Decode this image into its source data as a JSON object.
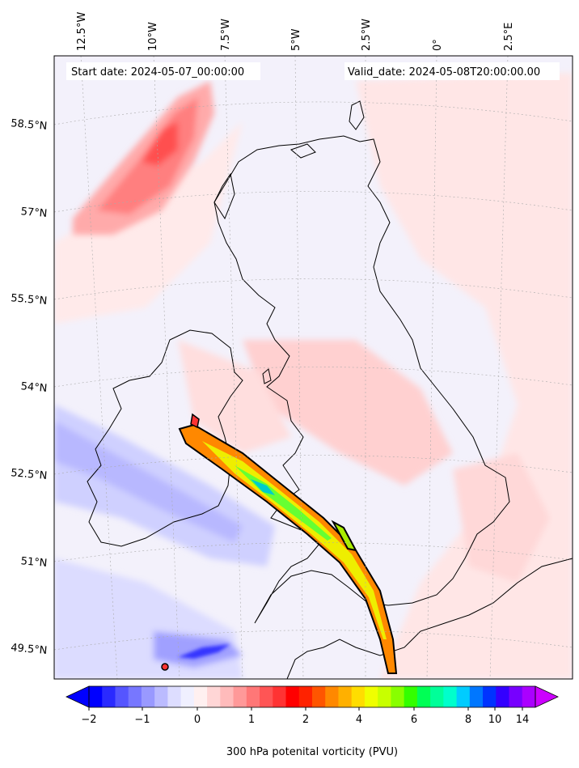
{
  "header": {
    "start_date": "Start date: 2024-05-07_00:00:00",
    "valid_date": "Valid_date: 2024-05-08T20:00:00.00"
  },
  "axes": {
    "lon_labels": [
      "12.5°W",
      "10°W",
      "7.5°W",
      "5°W",
      "2.5°W",
      "0°",
      "2.5°E"
    ],
    "lat_labels": [
      "58.5°N",
      "57°N",
      "55.5°N",
      "54°N",
      "52.5°N",
      "51°N",
      "49.5°N"
    ],
    "gridlines": true
  },
  "colorbar": {
    "label": "300 hPa potenital vorticity (PVU)",
    "tick_labels": [
      "−2",
      "−1",
      "0",
      "1",
      "2",
      "4",
      "6",
      "8",
      "10",
      "14"
    ],
    "extend": "both",
    "colors": [
      "#0000ff",
      "#2a2aff",
      "#5555ff",
      "#7777ff",
      "#9999ff",
      "#bbbbff",
      "#ddddff",
      "#f0f0ff",
      "#fff0f0",
      "#ffd6d6",
      "#ffbbbb",
      "#ff9999",
      "#ff7777",
      "#ff5555",
      "#ff3333",
      "#ff0000",
      "#ff2200",
      "#ff5500",
      "#ff8800",
      "#ffb000",
      "#ffdd00",
      "#f0ff00",
      "#c8ff00",
      "#88ff00",
      "#33ff00",
      "#00ff55",
      "#00ff99",
      "#00ffcc",
      "#00ccff",
      "#0077ff",
      "#0033ff",
      "#3300ff",
      "#7700ff",
      "#aa00ff"
    ],
    "under_color": "#0000ff",
    "over_color": "#cc00ff"
  }
}
